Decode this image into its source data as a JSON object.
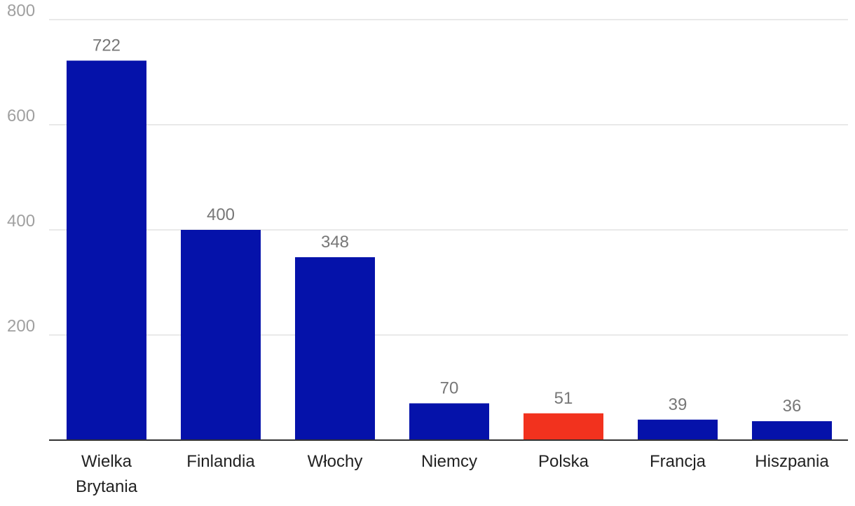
{
  "chart_data": {
    "type": "bar",
    "title": "",
    "xlabel": "",
    "ylabel": "",
    "ylim": [
      0,
      800
    ],
    "yticks": [
      200,
      400,
      600,
      800
    ],
    "grid": true,
    "categories": [
      [
        "Wielka",
        "Brytania"
      ],
      [
        "Finlandia"
      ],
      [
        "Włochy"
      ],
      [
        "Niemcy"
      ],
      [
        "Polska"
      ],
      [
        "Francja"
      ],
      [
        "Hiszpania"
      ]
    ],
    "values": [
      722,
      400,
      348,
      70,
      51,
      39,
      36
    ],
    "value_labels": [
      "722",
      "400",
      "348",
      "70",
      "51",
      "39",
      "36"
    ],
    "colors": [
      "#0512aa",
      "#0512aa",
      "#0512aa",
      "#0512aa",
      "#f2321e",
      "#0512aa",
      "#0512aa"
    ]
  }
}
